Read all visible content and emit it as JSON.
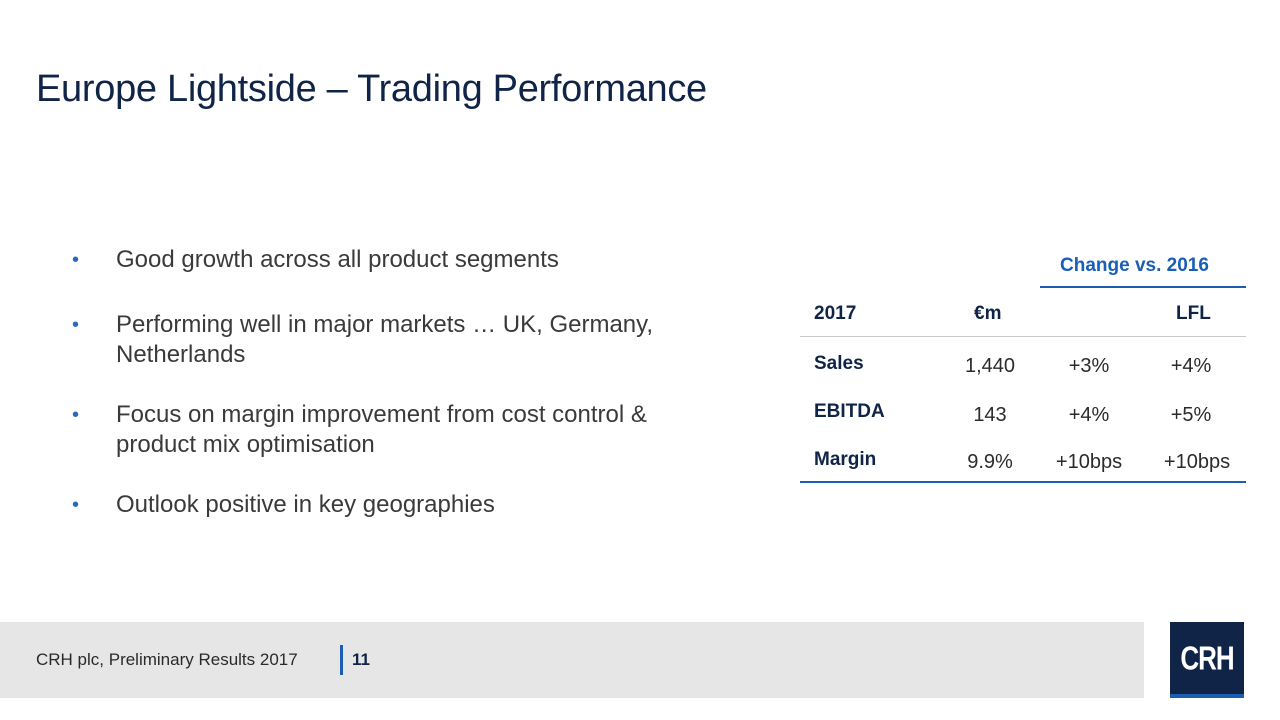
{
  "slide": {
    "title": "Europe Lightside – Trading Performance"
  },
  "bullets": [
    {
      "marker": "•",
      "text": "Good growth across all product segments"
    },
    {
      "marker": "•",
      "text": "Performing well in major markets … UK, Germany, Netherlands"
    },
    {
      "marker": "•",
      "text": "Focus on margin improvement from cost control & product mix optimisation"
    },
    {
      "marker": "•",
      "text": "Outlook positive in key geographies"
    }
  ],
  "table": {
    "change_header": "Change vs. 2016",
    "columns": [
      "2017",
      "€m",
      "",
      "LFL"
    ],
    "rows": [
      {
        "label": "Sales",
        "value": "1,440",
        "change": "+3%",
        "lfl": "+4%"
      },
      {
        "label": "EBITDA",
        "value": "143",
        "change": "+4%",
        "lfl": "+5%"
      },
      {
        "label": "Margin",
        "value": "9.9%",
        "change": "+10bps",
        "lfl": "+10bps"
      }
    ]
  },
  "footer": {
    "source": "CRH plc, Preliminary Results 2017",
    "page_number": "11",
    "logo_text": "CRH"
  },
  "colors": {
    "title": "#0f2447",
    "accent": "#1a5fb4",
    "footer_bg": "#e6e6e6"
  }
}
